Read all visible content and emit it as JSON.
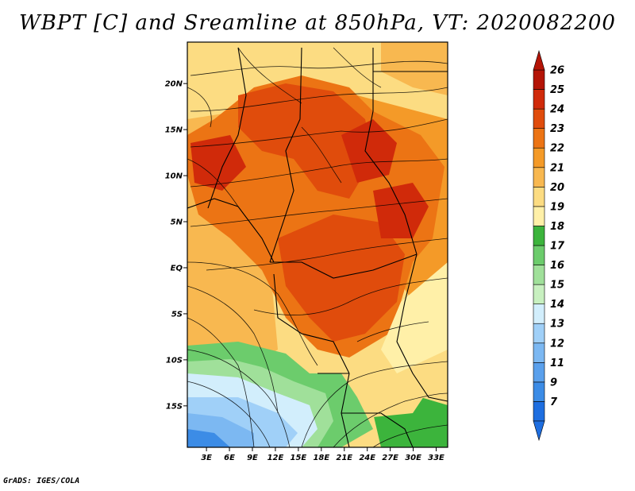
{
  "title": "WBPT [C] and Sreamline at 850hPa, VT: 2020082200",
  "credit": "GrADS: IGES/COLA",
  "map": {
    "lat_labels": [
      "20N",
      "15N",
      "10N",
      "5N",
      "EQ",
      "5S",
      "10S",
      "15S"
    ],
    "lat_values": [
      20,
      15,
      10,
      5,
      0,
      -5,
      -10,
      -15
    ],
    "lon_labels": [
      "3E",
      "6E",
      "9E",
      "12E",
      "15E",
      "18E",
      "21E",
      "24E",
      "27E",
      "30E",
      "33E"
    ],
    "lon_values": [
      3,
      6,
      9,
      12,
      15,
      18,
      21,
      24,
      27,
      30,
      33
    ],
    "lon_range": [
      0.5,
      34.5
    ],
    "lat_range": [
      -19.5,
      24.5
    ]
  },
  "colorbar": {
    "labels": [
      "7",
      "9",
      "11",
      "12",
      "13",
      "14",
      "15",
      "16",
      "17",
      "18",
      "19",
      "20",
      "21",
      "22",
      "23",
      "24",
      "25",
      "26"
    ],
    "colors": [
      "#1e6ee0",
      "#3c8ce6",
      "#5aa0ec",
      "#7cb8f2",
      "#a0d0f8",
      "#d2eefc",
      "#c8f0c0",
      "#a0e09a",
      "#6ccc6c",
      "#3cb43c",
      "#fff0a8",
      "#fcdc82",
      "#f8b850",
      "#f49a28",
      "#ec7414",
      "#e04c0c",
      "#d02a0a",
      "#b41406"
    ]
  }
}
